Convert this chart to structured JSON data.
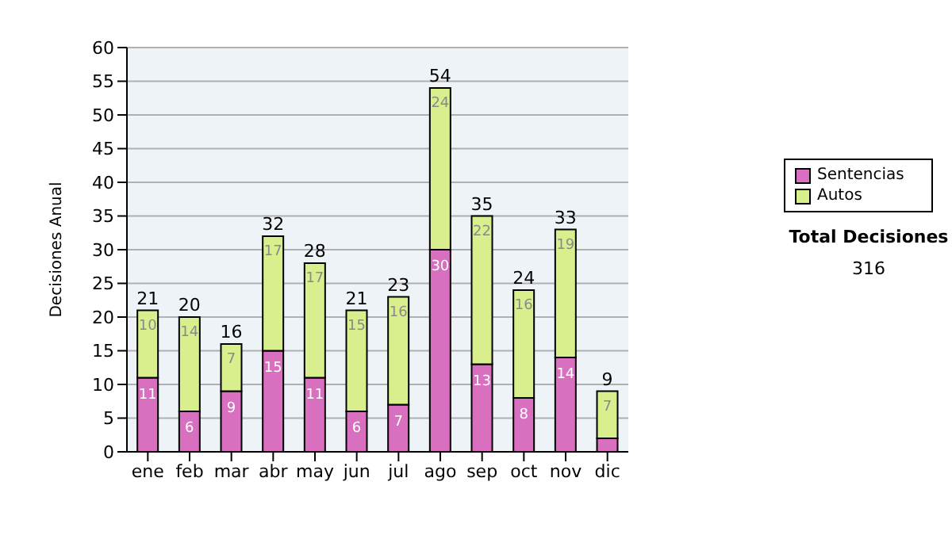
{
  "chart_data": {
    "type": "bar",
    "stacked": true,
    "ylabel": "Decisiones Anual",
    "categories": [
      "ene",
      "feb",
      "mar",
      "abr",
      "may",
      "jun",
      "jul",
      "ago",
      "sep",
      "oct",
      "nov",
      "dic"
    ],
    "series": [
      {
        "name": "Sentencias",
        "color": "#d86fbf",
        "values": [
          11,
          6,
          9,
          15,
          11,
          6,
          7,
          30,
          13,
          8,
          14,
          2
        ],
        "value_labels": [
          "11",
          "6",
          "9",
          "15",
          "11",
          "6",
          "7",
          "30",
          "13",
          "8",
          "14",
          null
        ]
      },
      {
        "name": "Autos",
        "color": "#d9ef8e",
        "values": [
          10,
          14,
          7,
          17,
          17,
          15,
          16,
          24,
          22,
          16,
          19,
          7
        ],
        "value_labels": [
          "10",
          "14",
          "7",
          "17",
          "17",
          "15",
          "16",
          "24",
          "22",
          "16",
          "19",
          "7"
        ]
      }
    ],
    "totals": [
      "21",
      "20",
      "16",
      "32",
      "28",
      "21",
      "23",
      "54",
      "35",
      "24",
      "33",
      "9"
    ],
    "ylim": [
      0,
      60
    ],
    "yticks": [
      0,
      5,
      10,
      15,
      20,
      25,
      30,
      35,
      40,
      45,
      50,
      55,
      60
    ],
    "grid": "y",
    "legend": "right",
    "annotations": [
      "Total Decisiones",
      "316"
    ]
  }
}
